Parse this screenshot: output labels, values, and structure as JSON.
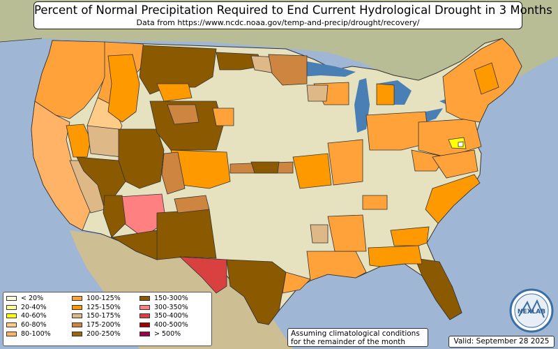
{
  "title": "Percent of Normal Precipitation Required to End Current Hydrological Drought in 3 Months",
  "subtitle": "Data from https://www.ncdc.noaa.gov/temp-and-precip/drought/recovery/",
  "legend": [
    {
      "label": "< 20%",
      "color": "#ffffe0"
    },
    {
      "label": "20-40%",
      "color": "#ffff99"
    },
    {
      "label": "40-60%",
      "color": "#ffff00"
    },
    {
      "label": "60-80%",
      "color": "#ffcc88"
    },
    {
      "label": "80-100%",
      "color": "#ffb366"
    },
    {
      "label": "100-125%",
      "color": "#ffa23a"
    },
    {
      "label": "125-150%",
      "color": "#ff9900"
    },
    {
      "label": "150-175%",
      "color": "#deb887"
    },
    {
      "label": "175-200%",
      "color": "#cd853f"
    },
    {
      "label": "200-250%",
      "color": "#a0620a"
    },
    {
      "label": "150-300%",
      "color": "#8b5a00"
    },
    {
      "label": "300-350%",
      "color": "#ff8080"
    },
    {
      "label": "350-400%",
      "color": "#d94040"
    },
    {
      "label": "400-500%",
      "color": "#a00000"
    },
    {
      "label": "> 500%",
      "color": "#a0004a"
    }
  ],
  "footnote": {
    "line1": "Assuming climatological conditions",
    "line2": "for the remainder of the month"
  },
  "valid": "Valid: September 28 2025",
  "logo_text": "NEXLAB",
  "colors": {
    "ocean": "#9fb7d4",
    "land": "#c9c49a",
    "forest": "#a8b48a",
    "lakes": "#4a7fb5",
    "no_drought": "#e9e6c4",
    "border": "#333333"
  }
}
